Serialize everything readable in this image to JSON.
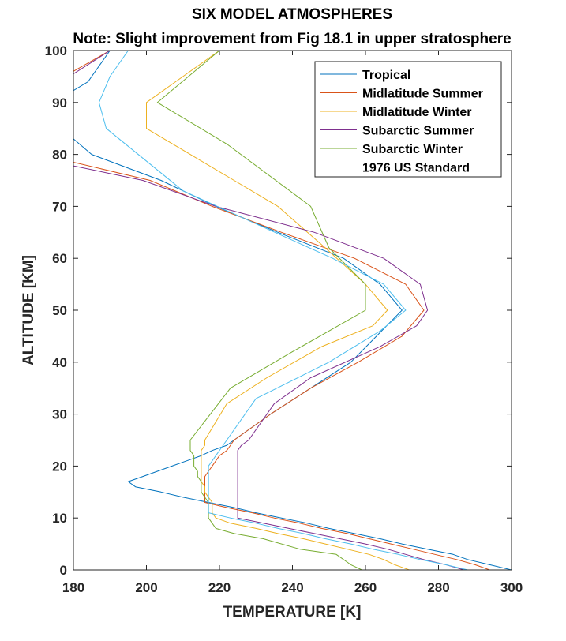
{
  "chart_data": {
    "type": "line",
    "title": "SIX MODEL ATMOSPHERES",
    "subtitle": "Note: Slight improvement from Fig 18.1 in upper stratosphere",
    "xlabel": "TEMPERATURE [K]",
    "ylabel": "ALTITUDE [KM]",
    "xlim": [
      180,
      300
    ],
    "ylim": [
      0,
      100
    ],
    "xticks": [
      180,
      200,
      220,
      240,
      260,
      280,
      300
    ],
    "yticks": [
      0,
      10,
      20,
      30,
      40,
      50,
      60,
      70,
      80,
      90,
      100
    ],
    "grid": false,
    "legend_position": "top-right",
    "series": [
      {
        "name": "Tropical",
        "color": "#0072BD",
        "points": [
          [
            300,
            0
          ],
          [
            294,
            1
          ],
          [
            288,
            2
          ],
          [
            284,
            3
          ],
          [
            277,
            4
          ],
          [
            270,
            5
          ],
          [
            264,
            6
          ],
          [
            257,
            7
          ],
          [
            250,
            8
          ],
          [
            244,
            9
          ],
          [
            237,
            10
          ],
          [
            230,
            11
          ],
          [
            224,
            12
          ],
          [
            217,
            13
          ],
          [
            210,
            14
          ],
          [
            204,
            15
          ],
          [
            197,
            16
          ],
          [
            195,
            17
          ],
          [
            199,
            18
          ],
          [
            203,
            19
          ],
          [
            207,
            20
          ],
          [
            211,
            21
          ],
          [
            215,
            22
          ],
          [
            218,
            23
          ],
          [
            222,
            24
          ],
          [
            224,
            25
          ],
          [
            234,
            30
          ],
          [
            245,
            35
          ],
          [
            256,
            40
          ],
          [
            263,
            45
          ],
          [
            270,
            50
          ],
          [
            264,
            55
          ],
          [
            254,
            60
          ],
          [
            236,
            65
          ],
          [
            219,
            70
          ],
          [
            204,
            75
          ],
          [
            185,
            80
          ],
          [
            180,
            83
          ]
        ],
        "upper_segment": [
          [
            180,
            92.3
          ],
          [
            184,
            94
          ],
          [
            190,
            100
          ]
        ]
      },
      {
        "name": "Midlatitude Summer",
        "color": "#D95319",
        "points": [
          [
            294,
            0
          ],
          [
            290,
            1
          ],
          [
            285,
            2
          ],
          [
            279,
            3
          ],
          [
            273,
            4
          ],
          [
            267,
            5
          ],
          [
            261,
            6
          ],
          [
            255,
            7
          ],
          [
            248,
            8
          ],
          [
            242,
            9
          ],
          [
            235,
            10
          ],
          [
            229,
            11
          ],
          [
            222,
            12
          ],
          [
            216,
            13
          ],
          [
            216,
            14
          ],
          [
            216,
            15
          ],
          [
            216,
            16
          ],
          [
            216,
            17
          ],
          [
            216,
            18
          ],
          [
            217,
            19
          ],
          [
            218,
            20
          ],
          [
            219,
            21
          ],
          [
            220,
            22
          ],
          [
            222,
            23
          ],
          [
            223,
            24
          ],
          [
            224,
            25
          ],
          [
            234,
            30
          ],
          [
            245,
            35
          ],
          [
            258,
            40
          ],
          [
            270,
            45
          ],
          [
            276,
            50
          ],
          [
            271,
            55
          ],
          [
            257,
            60
          ],
          [
            237,
            65
          ],
          [
            218,
            70
          ],
          [
            201,
            75
          ],
          [
            180,
            78.5
          ]
        ],
        "upper_segment": [
          [
            180,
            96
          ],
          [
            190,
            100
          ]
        ]
      },
      {
        "name": "Midlatitude Winter",
        "color": "#EDB120",
        "points": [
          [
            272,
            0
          ],
          [
            268,
            1
          ],
          [
            265,
            2
          ],
          [
            261,
            3
          ],
          [
            255,
            4
          ],
          [
            249,
            5
          ],
          [
            243,
            6
          ],
          [
            236,
            7
          ],
          [
            230,
            8
          ],
          [
            223,
            9
          ],
          [
            219,
            10
          ],
          [
            218,
            11
          ],
          [
            218,
            12
          ],
          [
            218,
            13
          ],
          [
            217,
            14
          ],
          [
            216,
            15
          ],
          [
            216,
            16
          ],
          [
            215,
            17
          ],
          [
            215,
            18
          ],
          [
            215,
            19
          ],
          [
            215,
            20
          ],
          [
            215,
            21
          ],
          [
            215,
            22
          ],
          [
            215,
            23
          ],
          [
            216,
            24
          ],
          [
            216,
            25
          ],
          [
            222,
            32
          ],
          [
            233,
            37
          ],
          [
            248,
            43
          ],
          [
            262,
            47
          ],
          [
            266,
            50
          ],
          [
            260,
            55
          ],
          [
            249,
            62
          ],
          [
            236,
            70
          ],
          [
            224,
            75
          ],
          [
            212,
            80
          ],
          [
            200,
            85
          ],
          [
            200,
            90
          ],
          [
            210,
            95
          ],
          [
            220,
            100
          ]
        ]
      },
      {
        "name": "Subarctic Summer",
        "color": "#7E2F8E",
        "points": [
          [
            287,
            0
          ],
          [
            282,
            1
          ],
          [
            276,
            2
          ],
          [
            271,
            3
          ],
          [
            266,
            4
          ],
          [
            260,
            5
          ],
          [
            253,
            6
          ],
          [
            246,
            7
          ],
          [
            239,
            8
          ],
          [
            232,
            9
          ],
          [
            225,
            10
          ],
          [
            225,
            11
          ],
          [
            225,
            12
          ],
          [
            225,
            13
          ],
          [
            225,
            14
          ],
          [
            225,
            15
          ],
          [
            225,
            16
          ],
          [
            225,
            17
          ],
          [
            225,
            18
          ],
          [
            225,
            19
          ],
          [
            225,
            20
          ],
          [
            225,
            21
          ],
          [
            225,
            22
          ],
          [
            225,
            23
          ],
          [
            226,
            24
          ],
          [
            228,
            25
          ],
          [
            235,
            32
          ],
          [
            245,
            37
          ],
          [
            264,
            43
          ],
          [
            274,
            47
          ],
          [
            277,
            50
          ],
          [
            275,
            55
          ],
          [
            265,
            60
          ],
          [
            246,
            65
          ],
          [
            219,
            70
          ],
          [
            199,
            75
          ],
          [
            180,
            77.8
          ]
        ],
        "upper_segment": [
          [
            180,
            95.5
          ],
          [
            190,
            100
          ]
        ]
      },
      {
        "name": "Subarctic Winter",
        "color": "#77AC30",
        "points": [
          [
            259,
            0
          ],
          [
            256,
            1
          ],
          [
            252,
            3
          ],
          [
            242,
            4
          ],
          [
            232,
            6
          ],
          [
            224,
            7
          ],
          [
            219,
            8
          ],
          [
            218,
            9
          ],
          [
            217,
            10
          ],
          [
            217,
            11
          ],
          [
            217,
            12
          ],
          [
            217,
            13
          ],
          [
            216,
            14
          ],
          [
            215,
            15
          ],
          [
            215,
            16
          ],
          [
            215,
            17
          ],
          [
            214,
            18
          ],
          [
            214,
            19
          ],
          [
            213,
            20
          ],
          [
            213,
            21
          ],
          [
            213,
            22
          ],
          [
            212,
            23
          ],
          [
            212,
            24
          ],
          [
            212,
            25
          ],
          [
            223,
            35
          ],
          [
            240,
            42
          ],
          [
            260,
            50
          ],
          [
            260,
            55
          ],
          [
            250,
            62
          ],
          [
            245,
            70
          ],
          [
            222,
            82
          ],
          [
            203,
            90
          ],
          [
            220,
            100
          ]
        ]
      },
      {
        "name": "1976 US Standard",
        "color": "#4DBEEE",
        "points": [
          [
            288,
            0
          ],
          [
            282,
            1
          ],
          [
            275,
            2
          ],
          [
            269,
            3
          ],
          [
            262,
            4
          ],
          [
            256,
            5
          ],
          [
            249,
            6
          ],
          [
            243,
            7
          ],
          [
            236,
            8
          ],
          [
            230,
            9
          ],
          [
            223,
            10
          ],
          [
            217,
            11
          ],
          [
            217,
            12
          ],
          [
            217,
            13
          ],
          [
            217,
            14
          ],
          [
            217,
            15
          ],
          [
            217,
            16
          ],
          [
            217,
            17
          ],
          [
            217,
            18
          ],
          [
            217,
            19
          ],
          [
            217,
            20
          ],
          [
            218,
            21
          ],
          [
            219,
            22
          ],
          [
            220,
            23
          ],
          [
            221,
            24
          ],
          [
            222,
            25
          ],
          [
            230,
            33
          ],
          [
            250,
            40
          ],
          [
            264,
            46
          ],
          [
            271,
            50
          ],
          [
            265,
            55
          ],
          [
            251,
            60
          ],
          [
            232,
            66
          ],
          [
            210,
            73
          ],
          [
            189,
            85
          ],
          [
            187,
            90
          ],
          [
            190,
            95
          ],
          [
            195,
            100
          ]
        ]
      }
    ]
  }
}
